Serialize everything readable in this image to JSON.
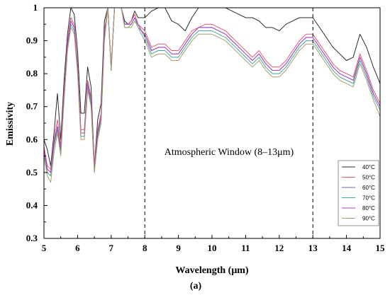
{
  "chart_data": {
    "type": "line",
    "title": "",
    "xlabel": "Wavelength (μm)",
    "ylabel": "Emissivity",
    "panel_label": "(a)",
    "annotation": "Atmospheric Window (8–13μm)",
    "xlim": [
      5,
      15
    ],
    "ylim": [
      0.3,
      1.0
    ],
    "x_ticks": [
      "5",
      "6",
      "7",
      "8",
      "9",
      "10",
      "11",
      "12",
      "13",
      "14",
      "15"
    ],
    "y_ticks": [
      "0.3",
      "0.4",
      "0.5",
      "0.6",
      "0.7",
      "0.8",
      "0.9",
      "1"
    ],
    "vlines": [
      8,
      13
    ],
    "grid": false,
    "legend_position": "bottom-right",
    "x": [
      5.0,
      5.1,
      5.2,
      5.3,
      5.4,
      5.5,
      5.6,
      5.7,
      5.8,
      5.9,
      6.0,
      6.1,
      6.2,
      6.3,
      6.4,
      6.5,
      6.6,
      6.7,
      6.8,
      6.9,
      7.0,
      7.1,
      7.2,
      7.3,
      7.4,
      7.5,
      7.6,
      7.7,
      7.8,
      7.9,
      8.0,
      8.2,
      8.4,
      8.6,
      8.8,
      9.0,
      9.2,
      9.4,
      9.6,
      9.8,
      10.0,
      10.2,
      10.4,
      10.6,
      10.8,
      11.0,
      11.2,
      11.4,
      11.6,
      11.8,
      12.0,
      12.2,
      12.4,
      12.6,
      12.8,
      13.0,
      13.2,
      13.4,
      13.6,
      13.8,
      14.0,
      14.2,
      14.4,
      14.6,
      14.8,
      15.0
    ],
    "series": [
      {
        "name": "40°C",
        "color": "#2b2b2b",
        "values": [
          0.6,
          0.57,
          0.52,
          0.62,
          0.74,
          0.6,
          0.78,
          0.92,
          1.0,
          0.98,
          0.87,
          0.68,
          0.68,
          0.82,
          0.76,
          0.52,
          0.66,
          0.71,
          0.96,
          1.0,
          0.81,
          1.0,
          1.0,
          1.0,
          0.96,
          0.95,
          0.96,
          0.99,
          0.97,
          0.97,
          0.97,
          0.99,
          1.0,
          1.0,
          0.96,
          0.95,
          0.93,
          0.97,
          1.0,
          1.0,
          1.0,
          1.0,
          1.0,
          0.99,
          0.98,
          0.97,
          0.97,
          0.96,
          0.94,
          0.94,
          0.93,
          0.95,
          0.96,
          0.97,
          0.97,
          0.97,
          0.94,
          0.91,
          0.88,
          0.86,
          0.84,
          0.85,
          0.92,
          0.88,
          0.82,
          0.77
        ]
      },
      {
        "name": "50°C",
        "color": "#e05a70",
        "values": [
          0.58,
          0.52,
          0.51,
          0.6,
          0.66,
          0.58,
          0.75,
          0.9,
          0.97,
          0.95,
          0.83,
          0.63,
          0.63,
          0.78,
          0.73,
          0.52,
          0.63,
          0.68,
          0.93,
          1.0,
          0.82,
          1.0,
          1.0,
          1.0,
          0.95,
          0.95,
          0.96,
          0.98,
          0.95,
          0.94,
          0.93,
          0.88,
          0.89,
          0.89,
          0.87,
          0.87,
          0.9,
          0.93,
          0.94,
          0.95,
          0.95,
          0.94,
          0.93,
          0.91,
          0.89,
          0.87,
          0.85,
          0.87,
          0.84,
          0.82,
          0.82,
          0.84,
          0.87,
          0.9,
          0.92,
          0.92,
          0.89,
          0.86,
          0.83,
          0.81,
          0.8,
          0.79,
          0.86,
          0.81,
          0.75,
          0.71
        ]
      },
      {
        "name": "60°C",
        "color": "#6a6aaa",
        "values": [
          0.57,
          0.51,
          0.5,
          0.59,
          0.64,
          0.57,
          0.74,
          0.89,
          0.96,
          0.94,
          0.82,
          0.62,
          0.62,
          0.77,
          0.72,
          0.51,
          0.62,
          0.67,
          0.92,
          1.0,
          0.82,
          1.0,
          1.0,
          1.0,
          0.95,
          0.95,
          0.95,
          0.97,
          0.95,
          0.93,
          0.92,
          0.87,
          0.88,
          0.88,
          0.86,
          0.86,
          0.89,
          0.92,
          0.94,
          0.94,
          0.94,
          0.93,
          0.92,
          0.9,
          0.88,
          0.86,
          0.84,
          0.86,
          0.83,
          0.81,
          0.81,
          0.83,
          0.86,
          0.89,
          0.91,
          0.91,
          0.88,
          0.85,
          0.82,
          0.8,
          0.79,
          0.78,
          0.85,
          0.8,
          0.74,
          0.7
        ]
      },
      {
        "name": "70°C",
        "color": "#40a8a0",
        "values": [
          0.56,
          0.5,
          0.49,
          0.58,
          0.63,
          0.56,
          0.73,
          0.88,
          0.95,
          0.93,
          0.81,
          0.61,
          0.61,
          0.76,
          0.71,
          0.5,
          0.61,
          0.66,
          0.91,
          1.0,
          0.82,
          1.0,
          1.0,
          1.0,
          0.94,
          0.94,
          0.95,
          0.97,
          0.94,
          0.93,
          0.91,
          0.86,
          0.87,
          0.87,
          0.85,
          0.85,
          0.88,
          0.91,
          0.93,
          0.93,
          0.93,
          0.92,
          0.91,
          0.89,
          0.87,
          0.85,
          0.83,
          0.85,
          0.82,
          0.8,
          0.8,
          0.82,
          0.85,
          0.88,
          0.9,
          0.9,
          0.87,
          0.84,
          0.81,
          0.79,
          0.78,
          0.77,
          0.84,
          0.79,
          0.73,
          0.69
        ]
      },
      {
        "name": "80°C",
        "color": "#b040c8",
        "values": [
          0.57,
          0.51,
          0.5,
          0.59,
          0.64,
          0.57,
          0.74,
          0.89,
          0.96,
          0.94,
          0.82,
          0.62,
          0.62,
          0.77,
          0.72,
          0.51,
          0.62,
          0.67,
          0.92,
          1.0,
          0.82,
          1.0,
          1.0,
          1.0,
          0.95,
          0.95,
          0.95,
          0.97,
          0.95,
          0.93,
          0.92,
          0.87,
          0.88,
          0.88,
          0.86,
          0.86,
          0.89,
          0.92,
          0.94,
          0.94,
          0.94,
          0.93,
          0.92,
          0.9,
          0.88,
          0.86,
          0.84,
          0.86,
          0.83,
          0.81,
          0.81,
          0.83,
          0.86,
          0.89,
          0.91,
          0.91,
          0.88,
          0.85,
          0.82,
          0.8,
          0.79,
          0.78,
          0.85,
          0.8,
          0.74,
          0.7
        ]
      },
      {
        "name": "90°C",
        "color": "#a8a06a",
        "values": [
          0.55,
          0.49,
          0.47,
          0.56,
          0.62,
          0.55,
          0.72,
          0.87,
          0.94,
          0.92,
          0.8,
          0.6,
          0.6,
          0.75,
          0.7,
          0.5,
          0.6,
          0.65,
          0.9,
          1.0,
          0.81,
          1.0,
          1.0,
          1.0,
          0.94,
          0.94,
          0.94,
          0.96,
          0.94,
          0.92,
          0.9,
          0.85,
          0.86,
          0.86,
          0.84,
          0.84,
          0.87,
          0.9,
          0.92,
          0.92,
          0.92,
          0.91,
          0.9,
          0.88,
          0.86,
          0.84,
          0.82,
          0.84,
          0.81,
          0.79,
          0.79,
          0.81,
          0.84,
          0.87,
          0.89,
          0.89,
          0.86,
          0.83,
          0.8,
          0.78,
          0.77,
          0.76,
          0.83,
          0.78,
          0.72,
          0.67
        ]
      }
    ]
  }
}
